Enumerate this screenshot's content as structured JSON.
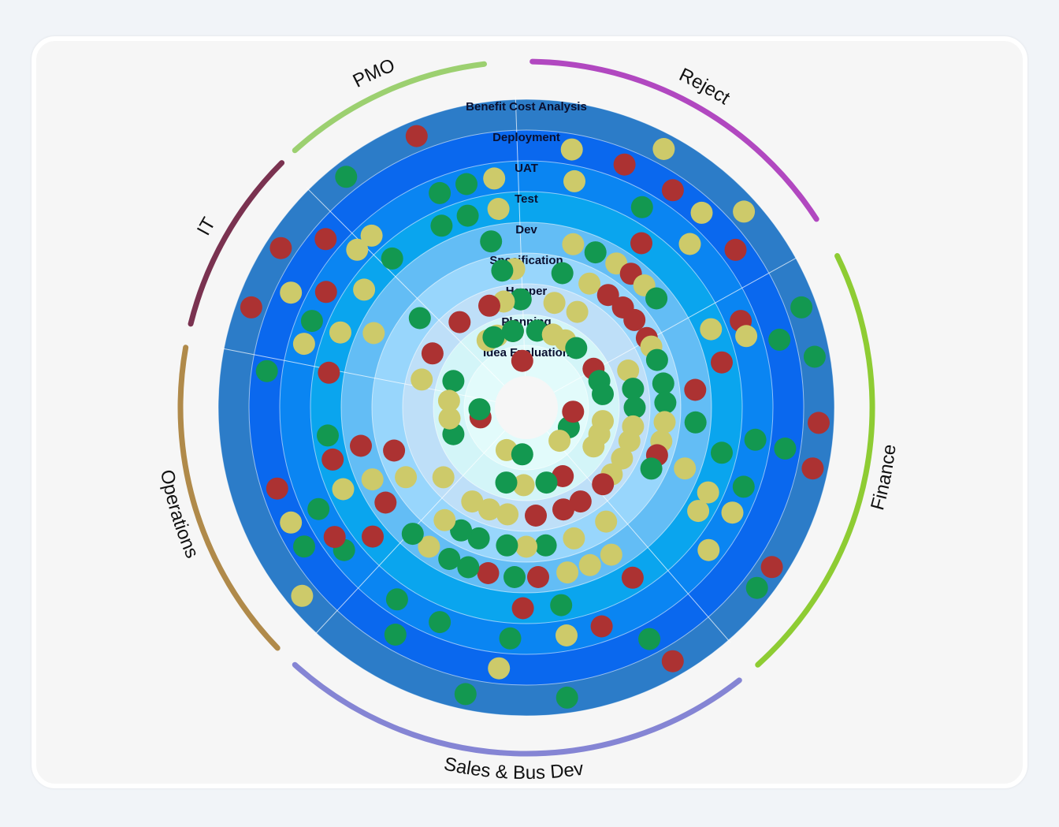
{
  "chart_data": {
    "type": "radial-radar",
    "rings": [
      {
        "label": "Idea Evaluation",
        "color": "#e2fbfb"
      },
      {
        "label": "Planning",
        "color": "#d3f5f8"
      },
      {
        "label": "Hopper",
        "color": "#bedfF8"
      },
      {
        "label": "Specification",
        "color": "#98d6fc"
      },
      {
        "label": "Dev",
        "color": "#63bdf5"
      },
      {
        "label": "Test",
        "color": "#0aa5ee"
      },
      {
        "label": "UAT",
        "color": "#0a85f2"
      },
      {
        "label": "Deployment",
        "color": "#0a68ee"
      },
      {
        "label": "Benefit Cost Analysis",
        "color": "#2c7cc8"
      }
    ],
    "departments": [
      {
        "name": "PMO",
        "start": -42,
        "end": -7,
        "color": "#9cd070"
      },
      {
        "name": "Reject",
        "start": 1,
        "end": 57,
        "color": "#b148c0"
      },
      {
        "name": "Finance",
        "start": 64,
        "end": 138,
        "color": "#8ecc33"
      },
      {
        "name": "Sales & Bus Dev",
        "start": 142,
        "end": 222,
        "color": "#8585d4"
      },
      {
        "name": "Operations",
        "start": 226,
        "end": 280,
        "color": "#b08a4a"
      },
      {
        "name": "IT",
        "start": 284,
        "end": 315,
        "color": "#7a3250"
      }
    ],
    "status_colors": {
      "green": "#139850",
      "yellow": "#cdca6a",
      "red": "#ac3232"
    },
    "projects": [
      {
        "angle": -38,
        "ring": 8,
        "status": "green"
      },
      {
        "angle": -22,
        "ring": 8,
        "status": "red"
      },
      {
        "angle": 10,
        "ring": 7,
        "status": "yellow"
      },
      {
        "angle": 12,
        "ring": 6,
        "status": "yellow"
      },
      {
        "angle": 22,
        "ring": 7,
        "status": "red"
      },
      {
        "angle": 28,
        "ring": 8,
        "status": "yellow"
      },
      {
        "angle": 30,
        "ring": 6,
        "status": "green"
      },
      {
        "angle": 34,
        "ring": 7,
        "status": "red"
      },
      {
        "angle": 42,
        "ring": 7,
        "status": "yellow"
      },
      {
        "angle": 45,
        "ring": 6,
        "status": "yellow"
      },
      {
        "angle": 35,
        "ring": 5,
        "status": "red"
      },
      {
        "angle": 48,
        "ring": 8,
        "status": "yellow"
      },
      {
        "angle": 53,
        "ring": 7,
        "status": "red"
      },
      {
        "angle": 16,
        "ring": 4,
        "status": "yellow"
      },
      {
        "angle": 24,
        "ring": 4,
        "status": "green"
      },
      {
        "angle": 32,
        "ring": 4,
        "status": "yellow"
      },
      {
        "angle": 38,
        "ring": 4,
        "status": "red"
      },
      {
        "angle": 44,
        "ring": 4,
        "status": "yellow"
      },
      {
        "angle": 50,
        "ring": 4,
        "status": "green"
      },
      {
        "angle": 15,
        "ring": 3,
        "status": "green"
      },
      {
        "angle": 27,
        "ring": 3,
        "status": "yellow"
      },
      {
        "angle": 36,
        "ring": 3,
        "status": "red"
      },
      {
        "angle": 44,
        "ring": 3,
        "status": "red"
      },
      {
        "angle": 51,
        "ring": 3,
        "status": "red"
      },
      {
        "angle": 15,
        "ring": 2,
        "status": "yellow"
      },
      {
        "angle": 28,
        "ring": 2,
        "status": "yellow"
      },
      {
        "angle": 8,
        "ring": 1,
        "status": "green"
      },
      {
        "angle": 20,
        "ring": 1,
        "status": "yellow"
      },
      {
        "angle": 30,
        "ring": 1,
        "status": "yellow"
      },
      {
        "angle": 40,
        "ring": 1,
        "status": "green"
      },
      {
        "angle": -10,
        "ring": 1,
        "status": "red"
      },
      {
        "angle": -22,
        "ring": 1,
        "status": "yellow"
      },
      {
        "angle": -3,
        "ring": 2,
        "status": "green"
      },
      {
        "angle": -12,
        "ring": 2,
        "status": "yellow"
      },
      {
        "angle": -22,
        "ring": 6,
        "status": "green"
      },
      {
        "angle": -15,
        "ring": 6,
        "status": "green"
      },
      {
        "angle": -8,
        "ring": 6,
        "status": "yellow"
      },
      {
        "angle": -25,
        "ring": 5,
        "status": "green"
      },
      {
        "angle": -17,
        "ring": 5,
        "status": "green"
      },
      {
        "angle": -8,
        "ring": 5,
        "status": "yellow"
      },
      {
        "angle": -12,
        "ring": 4,
        "status": "green"
      },
      {
        "angle": -5,
        "ring": 3,
        "status": "yellow"
      },
      {
        "angle": -10,
        "ring": 3,
        "status": "green"
      },
      {
        "angle": 70,
        "ring": 8,
        "status": "green"
      },
      {
        "angle": 75,
        "ring": 7,
        "status": "green"
      },
      {
        "angle": 80,
        "ring": 8,
        "status": "green"
      },
      {
        "angle": 68,
        "ring": 6,
        "status": "red"
      },
      {
        "angle": 77,
        "ring": 5,
        "status": "red"
      },
      {
        "angle": 72,
        "ring": 6,
        "status": "yellow"
      },
      {
        "angle": 67,
        "ring": 5,
        "status": "yellow"
      },
      {
        "angle": 84,
        "ring": 4,
        "status": "red"
      },
      {
        "angle": 95,
        "ring": 4,
        "status": "green"
      },
      {
        "angle": 93,
        "ring": 8,
        "status": "red"
      },
      {
        "angle": 99,
        "ring": 7,
        "status": "green"
      },
      {
        "angle": 98,
        "ring": 6,
        "status": "green"
      },
      {
        "angle": 103,
        "ring": 5,
        "status": "green"
      },
      {
        "angle": 102,
        "ring": 8,
        "status": "red"
      },
      {
        "angle": 110,
        "ring": 6,
        "status": "green"
      },
      {
        "angle": 111,
        "ring": 4,
        "status": "yellow"
      },
      {
        "angle": 115,
        "ring": 5,
        "status": "yellow"
      },
      {
        "angle": 123,
        "ring": 8,
        "status": "red"
      },
      {
        "angle": 128,
        "ring": 8,
        "status": "green"
      },
      {
        "angle": 117,
        "ring": 6,
        "status": "yellow"
      },
      {
        "angle": 121,
        "ring": 5,
        "status": "yellow"
      },
      {
        "angle": 128,
        "ring": 6,
        "status": "yellow"
      },
      {
        "angle": 60,
        "ring": 3,
        "status": "red"
      },
      {
        "angle": 64,
        "ring": 3,
        "status": "yellow"
      },
      {
        "angle": 70,
        "ring": 3,
        "status": "green"
      },
      {
        "angle": 80,
        "ring": 3,
        "status": "green"
      },
      {
        "angle": 88,
        "ring": 3,
        "status": "green"
      },
      {
        "angle": 96,
        "ring": 3,
        "status": "yellow"
      },
      {
        "angle": 104,
        "ring": 3,
        "status": "yellow"
      },
      {
        "angle": 110,
        "ring": 3,
        "status": "red"
      },
      {
        "angle": 116,
        "ring": 3,
        "status": "green"
      },
      {
        "angle": 70,
        "ring": 2,
        "status": "yellow"
      },
      {
        "angle": 80,
        "ring": 2,
        "status": "green"
      },
      {
        "angle": 90,
        "ring": 2,
        "status": "green"
      },
      {
        "angle": 100,
        "ring": 2,
        "status": "yellow"
      },
      {
        "angle": 108,
        "ring": 2,
        "status": "yellow"
      },
      {
        "angle": 118,
        "ring": 2,
        "status": "yellow"
      },
      {
        "angle": 128,
        "ring": 2,
        "status": "yellow"
      },
      {
        "angle": 135,
        "ring": 2,
        "status": "red"
      },
      {
        "angle": 60,
        "ring": 1,
        "status": "red"
      },
      {
        "angle": 70,
        "ring": 1,
        "status": "green"
      },
      {
        "angle": 80,
        "ring": 1,
        "status": "green"
      },
      {
        "angle": 100,
        "ring": 1,
        "status": "yellow"
      },
      {
        "angle": 110,
        "ring": 1,
        "status": "yellow"
      },
      {
        "angle": 120,
        "ring": 1,
        "status": "yellow"
      },
      {
        "angle": 115,
        "ring": 0,
        "status": "green"
      },
      {
        "angle": 135,
        "ring": 0,
        "status": "yellow"
      },
      {
        "angle": 95,
        "ring": 0,
        "status": "red"
      },
      {
        "angle": 150,
        "ring": 8,
        "status": "red"
      },
      {
        "angle": 172,
        "ring": 8,
        "status": "green"
      },
      {
        "angle": 152,
        "ring": 7,
        "status": "green"
      },
      {
        "angle": 161,
        "ring": 6,
        "status": "red"
      },
      {
        "angle": 170,
        "ring": 6,
        "status": "yellow"
      },
      {
        "angle": 186,
        "ring": 7,
        "status": "yellow"
      },
      {
        "angle": 192,
        "ring": 8,
        "status": "green"
      },
      {
        "angle": 184,
        "ring": 6,
        "status": "green"
      },
      {
        "angle": 202,
        "ring": 6,
        "status": "green"
      },
      {
        "angle": 210,
        "ring": 7,
        "status": "green"
      },
      {
        "angle": 214,
        "ring": 6,
        "status": "green"
      },
      {
        "angle": 170,
        "ring": 5,
        "status": "green"
      },
      {
        "angle": 181,
        "ring": 5,
        "status": "red"
      },
      {
        "angle": 148,
        "ring": 5,
        "status": "red"
      },
      {
        "angle": 150,
        "ring": 4,
        "status": "yellow"
      },
      {
        "angle": 158,
        "ring": 4,
        "status": "yellow"
      },
      {
        "angle": 166,
        "ring": 4,
        "status": "yellow"
      },
      {
        "angle": 176,
        "ring": 4,
        "status": "red"
      },
      {
        "angle": 184,
        "ring": 4,
        "status": "green"
      },
      {
        "angle": 193,
        "ring": 4,
        "status": "red"
      },
      {
        "angle": 200,
        "ring": 4,
        "status": "green"
      },
      {
        "angle": 207,
        "ring": 4,
        "status": "green"
      },
      {
        "angle": 215,
        "ring": 4,
        "status": "yellow"
      },
      {
        "angle": 145,
        "ring": 3,
        "status": "yellow"
      },
      {
        "angle": 160,
        "ring": 3,
        "status": "yellow"
      },
      {
        "angle": 172,
        "ring": 3,
        "status": "green"
      },
      {
        "angle": 180,
        "ring": 3,
        "status": "yellow"
      },
      {
        "angle": 188,
        "ring": 3,
        "status": "green"
      },
      {
        "angle": 200,
        "ring": 3,
        "status": "green"
      },
      {
        "angle": 208,
        "ring": 3,
        "status": "green"
      },
      {
        "angle": 216,
        "ring": 3,
        "status": "yellow"
      },
      {
        "angle": 150,
        "ring": 2,
        "status": "red"
      },
      {
        "angle": 160,
        "ring": 2,
        "status": "red"
      },
      {
        "angle": 175,
        "ring": 2,
        "status": "red"
      },
      {
        "angle": 190,
        "ring": 2,
        "status": "yellow"
      },
      {
        "angle": 200,
        "ring": 2,
        "status": "yellow"
      },
      {
        "angle": 210,
        "ring": 2,
        "status": "yellow"
      },
      {
        "angle": 152,
        "ring": 1,
        "status": "red"
      },
      {
        "angle": 165,
        "ring": 1,
        "status": "green"
      },
      {
        "angle": 182,
        "ring": 1,
        "status": "yellow"
      },
      {
        "angle": 195,
        "ring": 1,
        "status": "green"
      },
      {
        "angle": 205,
        "ring": 0,
        "status": "yellow"
      },
      {
        "angle": 185,
        "ring": 0,
        "status": "green"
      },
      {
        "angle": 230,
        "ring": 8,
        "status": "yellow"
      },
      {
        "angle": 238,
        "ring": 7,
        "status": "green"
      },
      {
        "angle": 244,
        "ring": 7,
        "status": "yellow"
      },
      {
        "angle": 252,
        "ring": 7,
        "status": "red"
      },
      {
        "angle": 244,
        "ring": 6,
        "status": "green"
      },
      {
        "angle": 232,
        "ring": 6,
        "status": "green"
      },
      {
        "angle": 236,
        "ring": 6,
        "status": "red"
      },
      {
        "angle": 230,
        "ring": 5,
        "status": "red"
      },
      {
        "angle": 246,
        "ring": 5,
        "status": "yellow"
      },
      {
        "angle": 255,
        "ring": 5,
        "status": "red"
      },
      {
        "angle": 262,
        "ring": 5,
        "status": "green"
      },
      {
        "angle": 236,
        "ring": 4,
        "status": "red"
      },
      {
        "angle": 245,
        "ring": 4,
        "status": "yellow"
      },
      {
        "angle": 257,
        "ring": 4,
        "status": "red"
      },
      {
        "angle": 222,
        "ring": 4,
        "status": "green"
      },
      {
        "angle": 240,
        "ring": 3,
        "status": "yellow"
      },
      {
        "angle": 252,
        "ring": 3,
        "status": "red"
      },
      {
        "angle": 230,
        "ring": 2,
        "status": "yellow"
      },
      {
        "angle": 250,
        "ring": 1,
        "status": "green"
      },
      {
        "angle": 262,
        "ring": 1,
        "status": "yellow"
      },
      {
        "angle": 258,
        "ring": 0,
        "status": "red"
      },
      {
        "angle": 268,
        "ring": 0,
        "status": "green"
      },
      {
        "angle": 290,
        "ring": 8,
        "status": "red"
      },
      {
        "angle": 303,
        "ring": 8,
        "status": "red"
      },
      {
        "angle": 310,
        "ring": 7,
        "status": "red"
      },
      {
        "angle": 296,
        "ring": 7,
        "status": "yellow"
      },
      {
        "angle": 278,
        "ring": 7,
        "status": "green"
      },
      {
        "angle": 286,
        "ring": 6,
        "status": "yellow"
      },
      {
        "angle": 292,
        "ring": 6,
        "status": "green"
      },
      {
        "angle": 300,
        "ring": 6,
        "status": "red"
      },
      {
        "angle": 313,
        "ring": 6,
        "status": "yellow"
      },
      {
        "angle": 318,
        "ring": 6,
        "status": "yellow"
      },
      {
        "angle": 318,
        "ring": 5,
        "status": "green"
      },
      {
        "angle": 280,
        "ring": 5,
        "status": "red"
      },
      {
        "angle": 292,
        "ring": 5,
        "status": "yellow"
      },
      {
        "angle": 306,
        "ring": 5,
        "status": "yellow"
      },
      {
        "angle": 296,
        "ring": 4,
        "status": "yellow"
      },
      {
        "angle": 310,
        "ring": 3,
        "status": "green"
      },
      {
        "angle": 300,
        "ring": 2,
        "status": "red"
      },
      {
        "angle": 322,
        "ring": 2,
        "status": "red"
      },
      {
        "angle": 285,
        "ring": 2,
        "status": "yellow"
      },
      {
        "angle": 290,
        "ring": 1,
        "status": "green"
      },
      {
        "angle": 275,
        "ring": 1,
        "status": "yellow"
      },
      {
        "angle": 330,
        "ring": 1,
        "status": "yellow"
      },
      {
        "angle": 340,
        "ring": 2,
        "status": "red"
      },
      {
        "angle": 335,
        "ring": 1,
        "status": "green"
      },
      {
        "angle": 350,
        "ring": 1,
        "status": "green"
      },
      {
        "angle": 355,
        "ring": 0,
        "status": "red"
      }
    ]
  }
}
